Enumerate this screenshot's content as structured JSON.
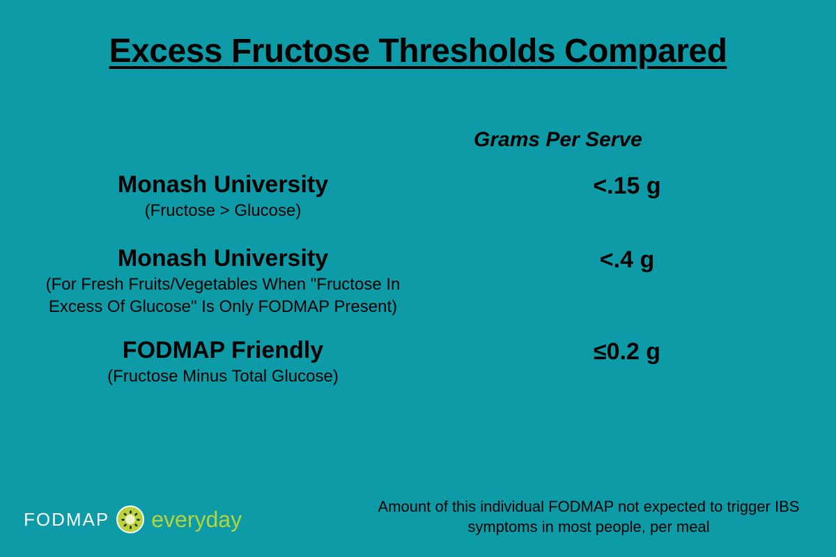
{
  "colors": {
    "background": "#0d9ca7",
    "text": "#000000",
    "logo_word1": "#ffffff",
    "logo_accent": "#b6d43a",
    "kiwi_center": "#e9f3c2",
    "kiwi_border": "#ffffff",
    "seed": "#2a2a2a"
  },
  "typography": {
    "title_fontsize": 48,
    "title_weight": 800,
    "column_header_fontsize": 30,
    "label_main_fontsize": 34,
    "label_main_weight": 800,
    "label_sub_fontsize": 24,
    "value_fontsize": 34,
    "value_weight": 800,
    "footnote_fontsize": 22,
    "logo_word1_fontsize": 26,
    "logo_word2_fontsize": 32
  },
  "title": "Excess Fructose Thresholds Compared",
  "column_header": "Grams Per Serve",
  "rows": [
    {
      "label": "Monash University",
      "sub": "(Fructose > Glucose)",
      "value": "<.15 g"
    },
    {
      "label": "Monash University",
      "sub": "(For Fresh Fruits/Vegetables When \"Fructose In Excess Of Glucose\" Is Only FODMAP Present)",
      "value": "<.4 g"
    },
    {
      "label": "FODMAP Friendly",
      "sub": "(Fructose Minus Total Glucose)",
      "value": "≤0.2 g"
    }
  ],
  "footnote": "Amount of this individual FODMAP not expected to trigger IBS symptoms in most people, per meal",
  "logo": {
    "word1": "FODMAP",
    "word2": "everyday"
  }
}
